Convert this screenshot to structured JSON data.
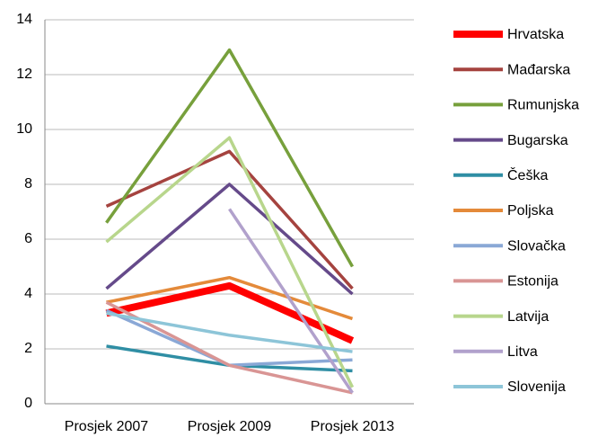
{
  "chart_data": {
    "type": "line",
    "categories": [
      "Prosjek 2007",
      "Prosjek 2009",
      "Prosjek 2013"
    ],
    "ylim": [
      0,
      14
    ],
    "yticks": [
      0,
      2,
      4,
      6,
      8,
      10,
      12,
      14
    ],
    "grid": true,
    "legend": "right",
    "series": [
      {
        "name": "Hrvatska",
        "color": "#ff0000",
        "values": [
          3.3,
          4.3,
          2.3
        ]
      },
      {
        "name": "Mađarska",
        "color": "#a5433f",
        "values": [
          7.2,
          9.2,
          4.2
        ]
      },
      {
        "name": "Rumunjska",
        "color": "#77a03c",
        "values": [
          6.6,
          12.9,
          5.0
        ]
      },
      {
        "name": "Bugarska",
        "color": "#654a8a",
        "values": [
          4.2,
          8.0,
          4.0
        ]
      },
      {
        "name": "Češka",
        "color": "#2f8ea4",
        "values": [
          2.1,
          1.4,
          1.2
        ]
      },
      {
        "name": "Poljska",
        "color": "#e48a3a",
        "values": [
          3.7,
          4.6,
          3.1
        ]
      },
      {
        "name": "Slovačka",
        "color": "#8aa8d6",
        "values": [
          3.4,
          1.4,
          1.6
        ]
      },
      {
        "name": "Estonija",
        "color": "#d99594",
        "values": [
          3.7,
          1.4,
          0.4
        ]
      },
      {
        "name": "Latvija",
        "color": "#b8d68c",
        "values": [
          5.9,
          9.7,
          0.6
        ]
      },
      {
        "name": "Litva",
        "color": "#b1a1cc",
        "values": [
          null,
          7.1,
          0.4
        ]
      },
      {
        "name": "Slovenija",
        "color": "#8dc5d8",
        "values": [
          3.3,
          2.5,
          1.9
        ]
      }
    ]
  }
}
